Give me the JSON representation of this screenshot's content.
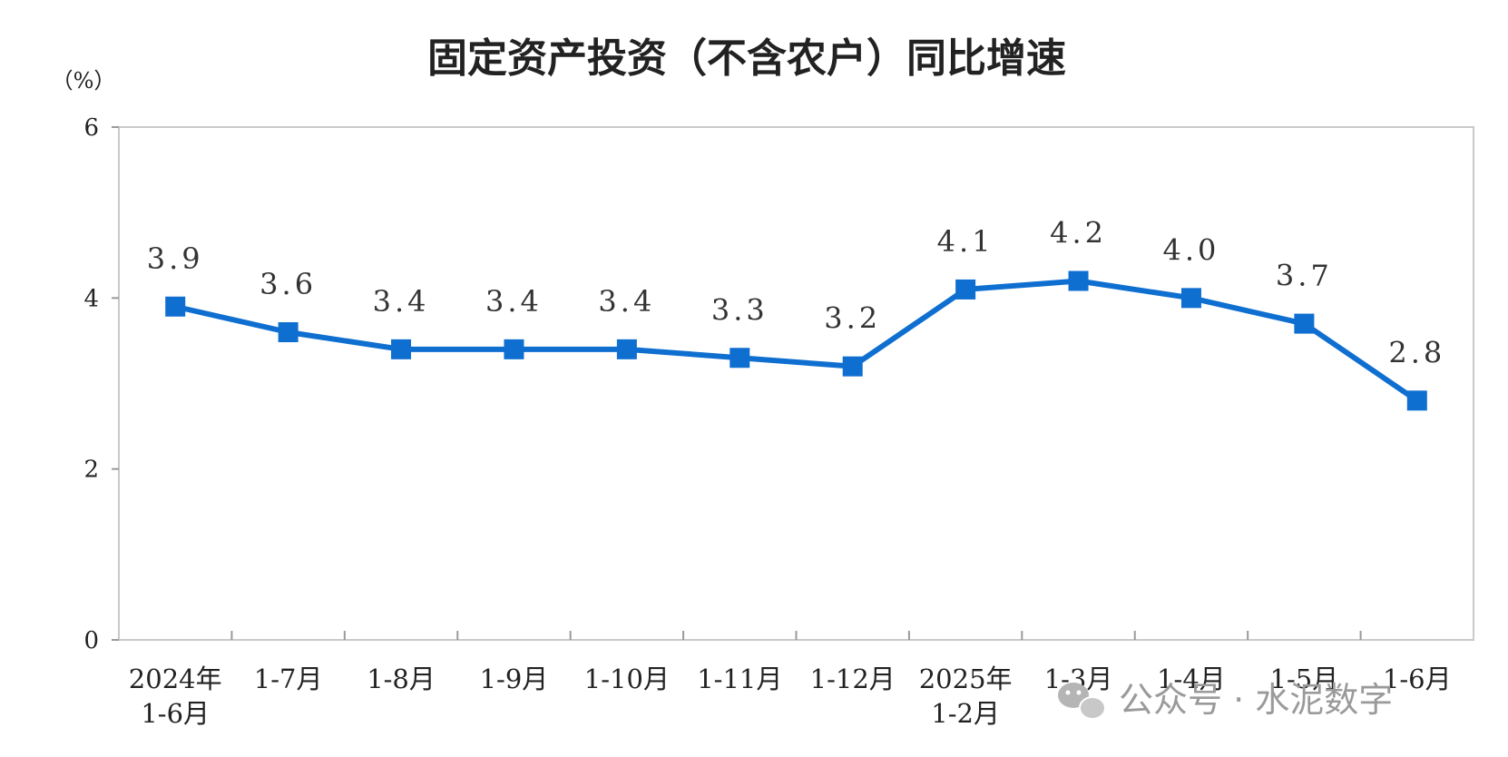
{
  "chart_data": {
    "type": "line",
    "title": "固定资产投资（不含农户）同比增速",
    "ylabel": "（%）",
    "xlabel": "",
    "ylim": [
      0,
      6
    ],
    "yticks": [
      "0",
      "2",
      "4",
      "6"
    ],
    "grid": false,
    "legend": "none",
    "categories": [
      [
        "2024年",
        "1-6月"
      ],
      [
        "1-7月"
      ],
      [
        "1-8月"
      ],
      [
        "1-9月"
      ],
      [
        "1-10月"
      ],
      [
        "1-11月"
      ],
      [
        "1-12月"
      ],
      [
        "2025年",
        "1-2月"
      ],
      [
        "1-3月"
      ],
      [
        "1-4月"
      ],
      [
        "1-5月"
      ],
      [
        "1-6月"
      ]
    ],
    "series": [
      {
        "values": [
          3.9,
          3.6,
          3.4,
          3.4,
          3.4,
          3.3,
          3.2,
          4.1,
          4.2,
          4.0,
          3.7,
          2.8
        ],
        "labels": [
          "3.9",
          "3.6",
          "3.4",
          "3.4",
          "3.4",
          "3.3",
          "3.2",
          "4.1",
          "4.2",
          "4.0",
          "3.7",
          "2.8"
        ],
        "color": "#0f6fd0"
      }
    ]
  },
  "watermark": {
    "icon": "wechat-icon",
    "text": "公众号 · 水泥数字"
  }
}
